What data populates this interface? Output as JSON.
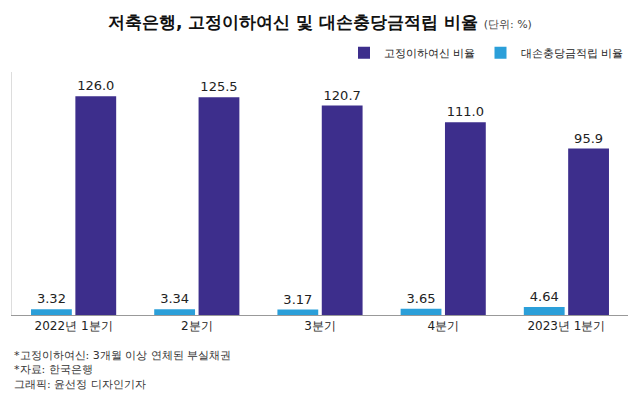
{
  "chart_data": {
    "type": "bar",
    "title": "저축은행, 고정이하여신 및 대손충당금적립 비율",
    "subtitle": "(단위: %)",
    "categories": [
      "2022년 1분기",
      "2분기",
      "3분기",
      "4분기",
      "2023년 1분기"
    ],
    "series": [
      {
        "name": "대손충당금적립 비율",
        "color": "#2b9fd9",
        "values": [
          3.32,
          3.34,
          3.17,
          3.65,
          4.64
        ],
        "value_labels": [
          "3.32",
          "3.34",
          "3.17",
          "3.65",
          "4.64"
        ]
      },
      {
        "name": "고정이하여신 비율",
        "color": "#3d2e8c",
        "values": [
          126.0,
          125.5,
          120.7,
          111.0,
          95.9
        ],
        "value_labels": [
          "126.0",
          "125.5",
          "120.7",
          "111.0",
          "95.9"
        ]
      }
    ],
    "ylim": [
      0,
      140
    ],
    "yticks": [],
    "grid": false,
    "tick_labels": "x",
    "data_labels": true,
    "legend": "top right",
    "annotations": [
      "*고정이하여신: 3개월 이상 연체된 부실채권",
      "*자료: 한국은행",
      "그래픽: 윤선정 디자인기자"
    ]
  }
}
